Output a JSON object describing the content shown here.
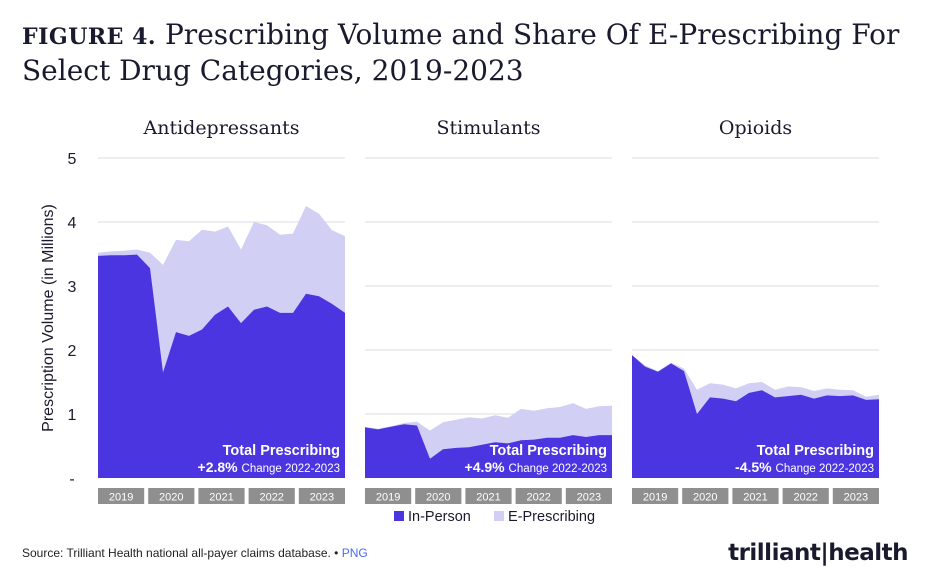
{
  "title": {
    "figure_label": "FIGURE 4.",
    "text": "Prescribing Volume and Share Of E-Prescribing For Select Drug Categories, 2019-2023"
  },
  "chart_data": {
    "type": "area",
    "ylabel": "Prescription Volume (in Millions)",
    "ylim": [
      0,
      5
    ],
    "yticks": [
      "5",
      "4",
      "3",
      "2",
      "1",
      "-"
    ],
    "ytick_values": [
      5,
      4,
      3,
      2,
      1,
      0
    ],
    "years": [
      "2019",
      "2020",
      "2021",
      "2022",
      "2023"
    ],
    "legend": [
      {
        "name": "In-Person",
        "color": "#4b35e0"
      },
      {
        "name": "E-Prescribing",
        "color": "#d2cff5"
      }
    ],
    "panels": [
      {
        "title": "Antidepressants",
        "annotation_title": "Total Prescribing",
        "annotation_value": "+2.8%",
        "annotation_suffix": "Change 2022-2023",
        "in_person": [
          3.47,
          3.48,
          3.48,
          3.49,
          3.28,
          1.65,
          2.28,
          2.22,
          2.32,
          2.55,
          2.68,
          2.42,
          2.63,
          2.68,
          2.58,
          2.58,
          2.88,
          2.84,
          2.72,
          2.58
        ],
        "total": [
          3.52,
          3.54,
          3.55,
          3.57,
          3.52,
          3.33,
          3.72,
          3.7,
          3.88,
          3.85,
          3.93,
          3.57,
          4.0,
          3.95,
          3.8,
          3.82,
          4.25,
          4.13,
          3.87,
          3.78
        ]
      },
      {
        "title": "Stimulants",
        "annotation_title": "Total Prescribing",
        "annotation_value": "+4.9%",
        "annotation_suffix": "Change 2022-2023",
        "in_person": [
          0.79,
          0.76,
          0.8,
          0.84,
          0.82,
          0.3,
          0.45,
          0.47,
          0.48,
          0.52,
          0.56,
          0.54,
          0.59,
          0.6,
          0.63,
          0.63,
          0.67,
          0.64,
          0.67,
          0.67
        ],
        "total": [
          0.8,
          0.77,
          0.81,
          0.86,
          0.88,
          0.74,
          0.87,
          0.91,
          0.95,
          0.93,
          0.98,
          0.94,
          1.08,
          1.05,
          1.09,
          1.11,
          1.17,
          1.08,
          1.12,
          1.13
        ]
      },
      {
        "title": "Opioids",
        "annotation_title": "Total Prescribing",
        "annotation_value": "-4.5%",
        "annotation_suffix": "Change 2022-2023",
        "in_person": [
          1.92,
          1.74,
          1.66,
          1.79,
          1.67,
          1.0,
          1.26,
          1.24,
          1.2,
          1.33,
          1.37,
          1.26,
          1.28,
          1.3,
          1.24,
          1.29,
          1.28,
          1.29,
          1.22,
          1.23
        ],
        "total": [
          1.92,
          1.76,
          1.67,
          1.8,
          1.71,
          1.38,
          1.48,
          1.46,
          1.4,
          1.48,
          1.5,
          1.38,
          1.43,
          1.42,
          1.36,
          1.4,
          1.38,
          1.37,
          1.27,
          1.3
        ]
      }
    ]
  },
  "footer": {
    "source": "Source: Trilliant Health national all-payer claims database.",
    "separator": "•",
    "link": "PNG"
  },
  "logo": {
    "text": "trilliant|health"
  }
}
